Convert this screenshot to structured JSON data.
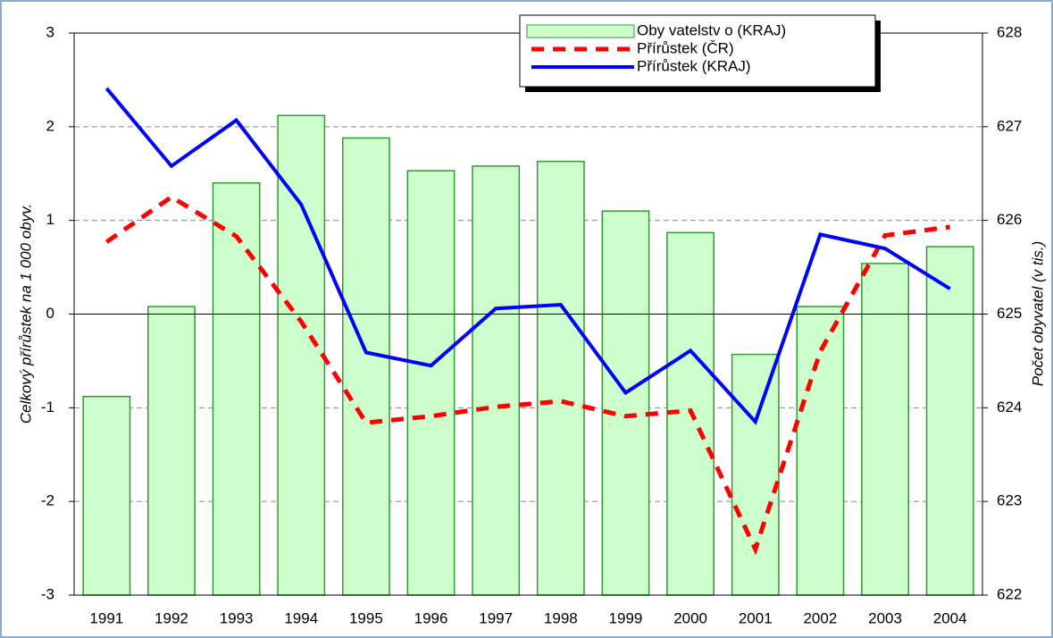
{
  "chart_data": {
    "type": "bar_line",
    "y_label": "Celkový přírůstek na 1 000 obyv.",
    "y2_label": "Počet obyvatel (v tis.)",
    "categories": [
      "1991",
      "1992",
      "1993",
      "1994",
      "1995",
      "1996",
      "1997",
      "1998",
      "1999",
      "2000",
      "2001",
      "2002",
      "2003",
      "2004"
    ],
    "series": [
      {
        "name": "Oby vatelstv o (KRAJ)",
        "kind": "bar",
        "axis": "y2",
        "color": "#ccffcc",
        "edge": "#339933",
        "values": [
          624.12,
          625.08,
          626.4,
          627.12,
          626.88,
          626.53,
          626.58,
          626.63,
          626.1,
          625.87,
          624.57,
          625.08,
          625.54,
          625.72
        ]
      },
      {
        "name": "Přírůstek (ČR)",
        "kind": "dashed",
        "color": "#ff0000",
        "values": [
          0.77,
          1.25,
          0.83,
          -0.08,
          -1.16,
          -1.09,
          -0.99,
          -0.93,
          -1.09,
          -1.03,
          -2.51,
          -0.4,
          0.84,
          0.93
        ]
      },
      {
        "name": "Přírůstek (KRAJ)",
        "kind": "line",
        "color": "#0000ff",
        "values": [
          2.41,
          1.58,
          2.07,
          1.17,
          -0.41,
          -0.55,
          0.06,
          0.1,
          -0.84,
          -0.39,
          -1.15,
          0.85,
          0.7,
          0.27
        ]
      }
    ],
    "ylim": [
      -3,
      3
    ],
    "yticks": [
      -3,
      -2,
      -1,
      0,
      1,
      2,
      3
    ],
    "y2lim": [
      622,
      628
    ],
    "y2ticks": [
      622,
      623,
      624,
      625,
      626,
      627,
      628
    ],
    "grid": true
  }
}
